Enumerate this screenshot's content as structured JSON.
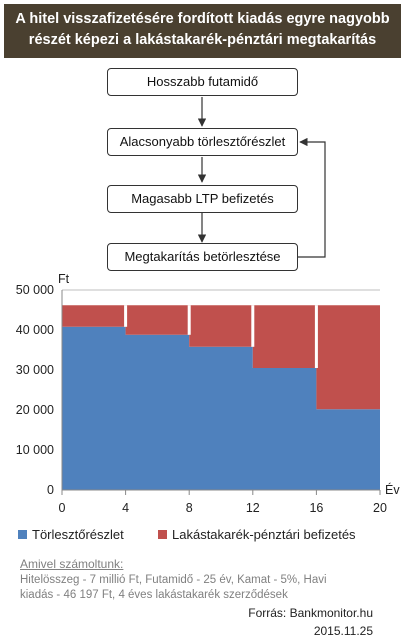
{
  "header": {
    "title_line1": "A hitel visszafizetésére fordított kiadás egyre nagyobb",
    "title_line2": "részét képezi a lakástakarék-pénztári megtakarítás"
  },
  "flow": {
    "steps": [
      "Hosszabb futamidő",
      "Alacsonyabb törlesztőrészlet",
      "Magasabb LTP befizetés",
      "Megtakarítás betörlesztése"
    ]
  },
  "chart_data": {
    "type": "area",
    "x": [
      0,
      4,
      4,
      8,
      8,
      12,
      12,
      16,
      16,
      20
    ],
    "xticks": [
      0,
      4,
      8,
      12,
      16,
      20
    ],
    "xlabel": "Év",
    "ylabel": "Ft",
    "ylim": [
      0,
      50000
    ],
    "yticks": [
      "0",
      "10 000",
      "20 000",
      "30 000",
      "40 000",
      "50 000"
    ],
    "ytick_values": [
      0,
      10000,
      20000,
      30000,
      40000,
      50000
    ],
    "xlim": [
      0,
      20
    ],
    "grid": true,
    "total": 46197,
    "series": [
      {
        "name": "Törlesztőrészlet",
        "color": "#4f81bd",
        "values": [
          40800,
          40800,
          38800,
          38800,
          35800,
          35800,
          30500,
          30500,
          20200,
          20200
        ]
      },
      {
        "name": "Lakástakarék-pénztári befizetés",
        "color": "#c0504d",
        "values": [
          5397,
          5397,
          7397,
          7397,
          10397,
          10397,
          15697,
          15697,
          25997,
          25997
        ]
      }
    ]
  },
  "footer": {
    "note_head": "Amivel számoltunk:",
    "note_body": "Hitelösszeg - 7 millió Ft, Futamidő - 25 év, Kamat - 5%, Havi kiadás - 46 197 Ft, 4 éves lakástakarék szerződések",
    "source": "Forrás: Bankmonitor.hu",
    "date": "2015.11.25"
  }
}
